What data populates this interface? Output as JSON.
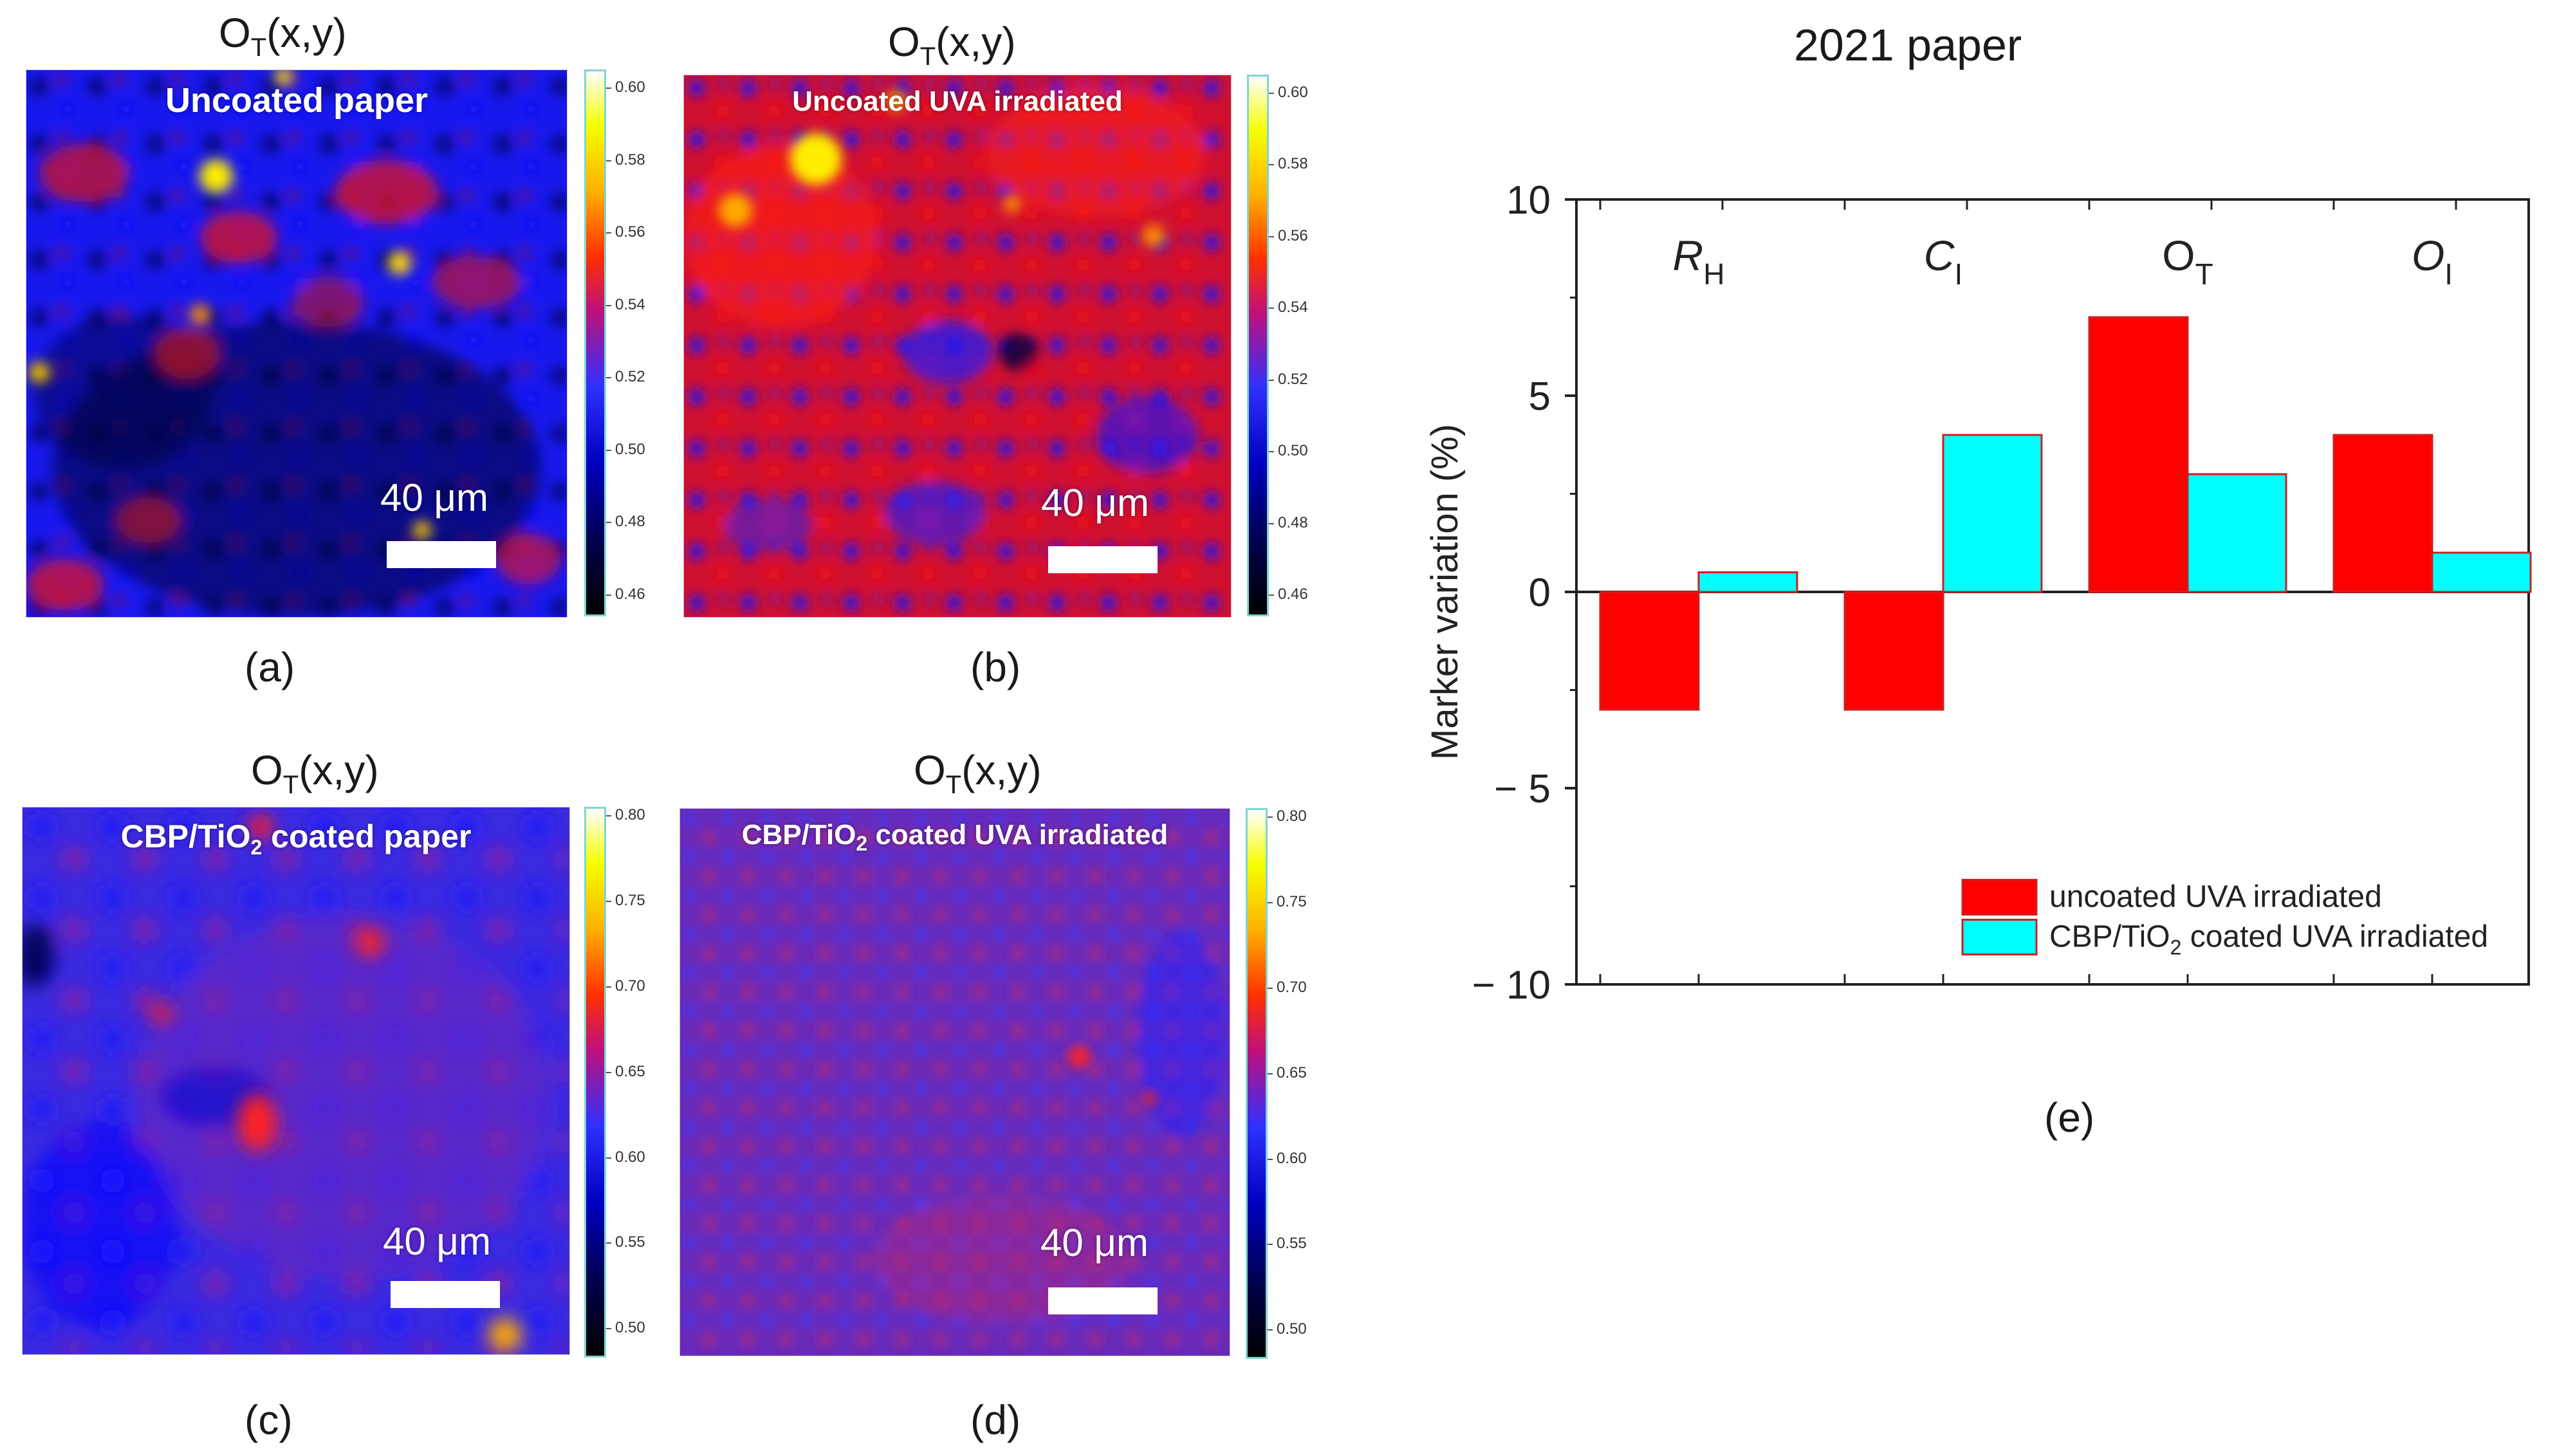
{
  "panels": [
    {
      "id": "a",
      "title": "OT(x,y)",
      "label": "Uncoated paper",
      "caption": "(a)",
      "scale": "40 μm",
      "ticks": [
        "0.60",
        "0.58",
        "0.56",
        "0.54",
        "0.52",
        "0.50",
        "0.48",
        "0.46"
      ],
      "colorbar_range": [
        0.455,
        0.605
      ]
    },
    {
      "id": "b",
      "title": "OT(x,y)",
      "label": "Uncoated UVA irradiated",
      "caption": "(b)",
      "scale": "40 μm",
      "ticks": [
        "0.60",
        "0.58",
        "0.56",
        "0.54",
        "0.52",
        "0.50",
        "0.48",
        "0.46"
      ],
      "colorbar_range": [
        0.455,
        0.605
      ]
    },
    {
      "id": "c",
      "title": "OT(x,y)",
      "label": "CBP/TiO2 coated paper",
      "caption": "(c)",
      "scale": "40 μm",
      "ticks": [
        "0.80",
        "0.75",
        "0.70",
        "0.65",
        "0.60",
        "0.55",
        "0.50"
      ],
      "colorbar_range": [
        0.485,
        0.805
      ]
    },
    {
      "id": "d",
      "title": "OT(x,y)",
      "label": "CBP/TiO2 coated UVA irradiated",
      "caption": "(d)",
      "scale": "40 μm",
      "ticks": [
        "0.80",
        "0.75",
        "0.70",
        "0.65",
        "0.60",
        "0.55",
        "0.50"
      ],
      "colorbar_range": [
        0.485,
        0.805
      ]
    }
  ],
  "chart_data": {
    "type": "bar",
    "title": "2021 paper",
    "caption": "(e)",
    "categories": [
      "RH",
      "CI",
      "OT",
      "OI"
    ],
    "series": [
      {
        "name": "uncoated UVA irradiated",
        "color": "#ff0000",
        "values": [
          -3,
          -3,
          7,
          4
        ]
      },
      {
        "name": "CBP/TiO2 coated UVA irradiated",
        "color": "#00ffff",
        "values": [
          0.5,
          4,
          3,
          1
        ]
      }
    ],
    "xlabel": "",
    "ylabel": "Marker variation (%)",
    "ylim": [
      -10,
      10
    ],
    "yticks": [
      "10",
      "5",
      "0",
      "− 5",
      "− 10"
    ],
    "legend_position": "bottom-right"
  }
}
